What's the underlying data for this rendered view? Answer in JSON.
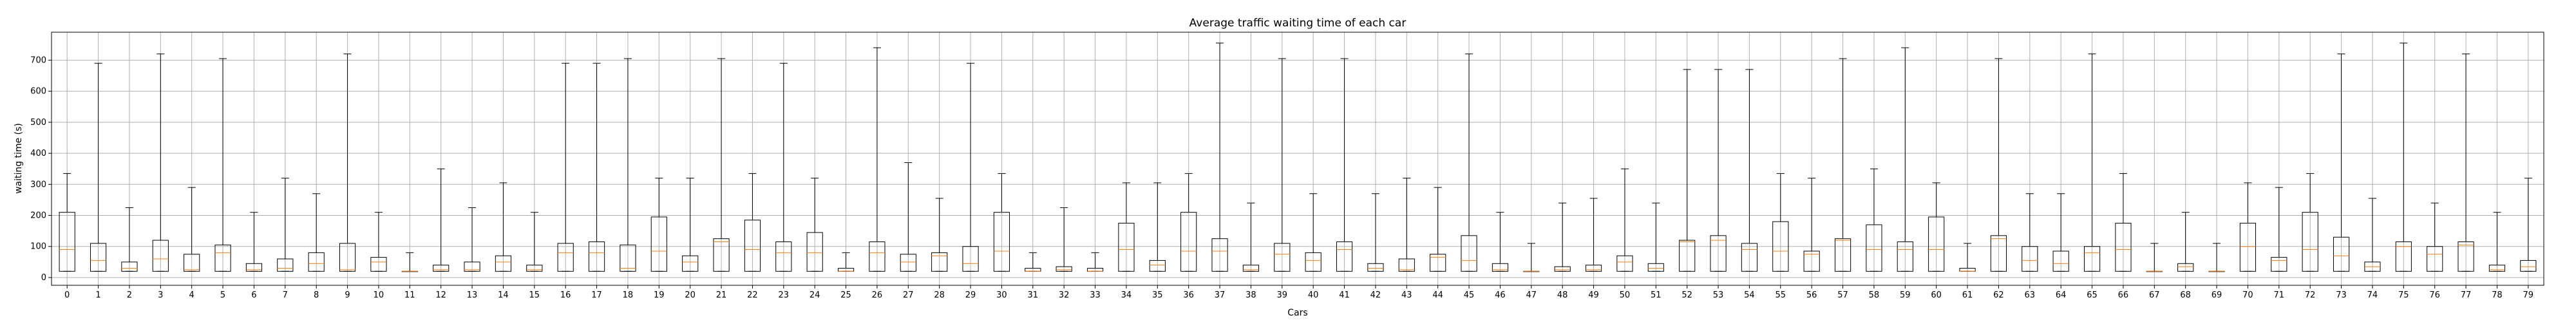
{
  "chart_data": {
    "type": "boxplot",
    "title": "Average traffic waiting time of each car",
    "xlabel": "Cars",
    "ylabel": "waiting time (s)",
    "ylim": [
      -25,
      790
    ],
    "yticks": [
      0,
      100,
      200,
      300,
      400,
      500,
      600,
      700
    ],
    "grid": true,
    "colors": {
      "box": "#000000",
      "median": "#ff7f0e",
      "grid": "#b0b0b0"
    },
    "categories": [
      "0",
      "1",
      "2",
      "3",
      "4",
      "5",
      "6",
      "7",
      "8",
      "9",
      "10",
      "11",
      "12",
      "13",
      "14",
      "15",
      "16",
      "17",
      "18",
      "19",
      "20",
      "21",
      "22",
      "23",
      "24",
      "25",
      "26",
      "27",
      "28",
      "29",
      "30",
      "31",
      "32",
      "33",
      "34",
      "35",
      "36",
      "37",
      "38",
      "39",
      "40",
      "41",
      "42",
      "43",
      "44",
      "45",
      "46",
      "47",
      "48",
      "49",
      "50",
      "51",
      "52",
      "53",
      "54",
      "55",
      "56",
      "57",
      "58",
      "59",
      "60",
      "61",
      "62",
      "63",
      "64",
      "65",
      "66",
      "67",
      "68",
      "69",
      "70",
      "71",
      "72",
      "73",
      "74",
      "75",
      "76",
      "77",
      "78",
      "79"
    ],
    "boxes": [
      {
        "min": 20,
        "q1": 20,
        "median": 90,
        "q3": 210,
        "max": 335
      },
      {
        "min": 20,
        "q1": 20,
        "median": 55,
        "q3": 110,
        "max": 690
      },
      {
        "min": 20,
        "q1": 20,
        "median": 30,
        "q3": 50,
        "max": 225
      },
      {
        "min": 20,
        "q1": 20,
        "median": 60,
        "q3": 120,
        "max": 720
      },
      {
        "min": 20,
        "q1": 20,
        "median": 25,
        "q3": 75,
        "max": 290
      },
      {
        "min": 20,
        "q1": 20,
        "median": 80,
        "q3": 105,
        "max": 705
      },
      {
        "min": 20,
        "q1": 20,
        "median": 25,
        "q3": 45,
        "max": 210
      },
      {
        "min": 20,
        "q1": 20,
        "median": 30,
        "q3": 60,
        "max": 320
      },
      {
        "min": 20,
        "q1": 20,
        "median": 45,
        "q3": 80,
        "max": 270
      },
      {
        "min": 20,
        "q1": 20,
        "median": 25,
        "q3": 110,
        "max": 720
      },
      {
        "min": 20,
        "q1": 20,
        "median": 50,
        "q3": 65,
        "max": 210
      },
      {
        "min": 20,
        "q1": 20,
        "median": 20,
        "q3": 20,
        "max": 80
      },
      {
        "min": 20,
        "q1": 20,
        "median": 25,
        "q3": 40,
        "max": 350
      },
      {
        "min": 20,
        "q1": 20,
        "median": 25,
        "q3": 50,
        "max": 225
      },
      {
        "min": 20,
        "q1": 20,
        "median": 50,
        "q3": 70,
        "max": 305
      },
      {
        "min": 20,
        "q1": 20,
        "median": 25,
        "q3": 40,
        "max": 210
      },
      {
        "min": 20,
        "q1": 20,
        "median": 80,
        "q3": 110,
        "max": 690
      },
      {
        "min": 20,
        "q1": 20,
        "median": 80,
        "q3": 115,
        "max": 690
      },
      {
        "min": 20,
        "q1": 20,
        "median": 30,
        "q3": 105,
        "max": 705
      },
      {
        "min": 20,
        "q1": 20,
        "median": 85,
        "q3": 195,
        "max": 320
      },
      {
        "min": 20,
        "q1": 20,
        "median": 50,
        "q3": 70,
        "max": 320
      },
      {
        "min": 20,
        "q1": 20,
        "median": 115,
        "q3": 125,
        "max": 705
      },
      {
        "min": 20,
        "q1": 20,
        "median": 90,
        "q3": 185,
        "max": 335
      },
      {
        "min": 20,
        "q1": 20,
        "median": 80,
        "q3": 115,
        "max": 690
      },
      {
        "min": 20,
        "q1": 20,
        "median": 80,
        "q3": 145,
        "max": 320
      },
      {
        "min": 20,
        "q1": 20,
        "median": 20,
        "q3": 30,
        "max": 80
      },
      {
        "min": 20,
        "q1": 20,
        "median": 80,
        "q3": 115,
        "max": 740
      },
      {
        "min": 20,
        "q1": 20,
        "median": 50,
        "q3": 75,
        "max": 370
      },
      {
        "min": 20,
        "q1": 20,
        "median": 70,
        "q3": 80,
        "max": 255
      },
      {
        "min": 20,
        "q1": 20,
        "median": 45,
        "q3": 100,
        "max": 690
      },
      {
        "min": 20,
        "q1": 20,
        "median": 85,
        "q3": 210,
        "max": 335
      },
      {
        "min": 20,
        "q1": 20,
        "median": 20,
        "q3": 30,
        "max": 80
      },
      {
        "min": 20,
        "q1": 20,
        "median": 25,
        "q3": 35,
        "max": 225
      },
      {
        "min": 20,
        "q1": 20,
        "median": 20,
        "q3": 30,
        "max": 80
      },
      {
        "min": 20,
        "q1": 20,
        "median": 90,
        "q3": 175,
        "max": 305
      },
      {
        "min": 20,
        "q1": 20,
        "median": 40,
        "q3": 55,
        "max": 305
      },
      {
        "min": 20,
        "q1": 20,
        "median": 85,
        "q3": 210,
        "max": 335
      },
      {
        "min": 20,
        "q1": 20,
        "median": 85,
        "q3": 125,
        "max": 755
      },
      {
        "min": 20,
        "q1": 20,
        "median": 25,
        "q3": 40,
        "max": 240
      },
      {
        "min": 20,
        "q1": 20,
        "median": 75,
        "q3": 110,
        "max": 705
      },
      {
        "min": 20,
        "q1": 20,
        "median": 55,
        "q3": 80,
        "max": 270
      },
      {
        "min": 20,
        "q1": 20,
        "median": 90,
        "q3": 115,
        "max": 705
      },
      {
        "min": 20,
        "q1": 20,
        "median": 30,
        "q3": 45,
        "max": 270
      },
      {
        "min": 20,
        "q1": 20,
        "median": 25,
        "q3": 60,
        "max": 320
      },
      {
        "min": 20,
        "q1": 20,
        "median": 65,
        "q3": 75,
        "max": 290
      },
      {
        "min": 20,
        "q1": 20,
        "median": 55,
        "q3": 135,
        "max": 720
      },
      {
        "min": 20,
        "q1": 20,
        "median": 25,
        "q3": 45,
        "max": 210
      },
      {
        "min": 20,
        "q1": 20,
        "median": 20,
        "q3": 20,
        "max": 110
      },
      {
        "min": 20,
        "q1": 20,
        "median": 25,
        "q3": 35,
        "max": 240
      },
      {
        "min": 20,
        "q1": 20,
        "median": 25,
        "q3": 40,
        "max": 255
      },
      {
        "min": 20,
        "q1": 20,
        "median": 50,
        "q3": 70,
        "max": 350
      },
      {
        "min": 20,
        "q1": 20,
        "median": 30,
        "q3": 45,
        "max": 240
      },
      {
        "min": 20,
        "q1": 20,
        "median": 115,
        "q3": 120,
        "max": 670
      },
      {
        "min": 20,
        "q1": 20,
        "median": 120,
        "q3": 135,
        "max": 670
      },
      {
        "min": 20,
        "q1": 20,
        "median": 90,
        "q3": 110,
        "max": 670
      },
      {
        "min": 20,
        "q1": 20,
        "median": 85,
        "q3": 180,
        "max": 335
      },
      {
        "min": 20,
        "q1": 20,
        "median": 75,
        "q3": 85,
        "max": 320
      },
      {
        "min": 20,
        "q1": 20,
        "median": 120,
        "q3": 125,
        "max": 705
      },
      {
        "min": 20,
        "q1": 20,
        "median": 90,
        "q3": 170,
        "max": 350
      },
      {
        "min": 20,
        "q1": 20,
        "median": 90,
        "q3": 115,
        "max": 740
      },
      {
        "min": 20,
        "q1": 20,
        "median": 90,
        "q3": 195,
        "max": 305
      },
      {
        "min": 20,
        "q1": 20,
        "median": 20,
        "q3": 30,
        "max": 110
      },
      {
        "min": 20,
        "q1": 20,
        "median": 125,
        "q3": 135,
        "max": 705
      },
      {
        "min": 20,
        "q1": 20,
        "median": 55,
        "q3": 100,
        "max": 270
      },
      {
        "min": 20,
        "q1": 20,
        "median": 45,
        "q3": 85,
        "max": 270
      },
      {
        "min": 20,
        "q1": 20,
        "median": 80,
        "q3": 100,
        "max": 720
      },
      {
        "min": 20,
        "q1": 20,
        "median": 90,
        "q3": 175,
        "max": 335
      },
      {
        "min": 20,
        "q1": 20,
        "median": 20,
        "q3": 20,
        "max": 110
      },
      {
        "min": 20,
        "q1": 20,
        "median": 35,
        "q3": 45,
        "max": 210
      },
      {
        "min": 20,
        "q1": 20,
        "median": 20,
        "q3": 20,
        "max": 110
      },
      {
        "min": 20,
        "q1": 20,
        "median": 100,
        "q3": 175,
        "max": 305
      },
      {
        "min": 20,
        "q1": 20,
        "median": 55,
        "q3": 65,
        "max": 290
      },
      {
        "min": 20,
        "q1": 20,
        "median": 90,
        "q3": 210,
        "max": 335
      },
      {
        "min": 20,
        "q1": 20,
        "median": 70,
        "q3": 130,
        "max": 720
      },
      {
        "min": 20,
        "q1": 20,
        "median": 35,
        "q3": 50,
        "max": 255
      },
      {
        "min": 20,
        "q1": 20,
        "median": 100,
        "q3": 115,
        "max": 755
      },
      {
        "min": 20,
        "q1": 20,
        "median": 75,
        "q3": 100,
        "max": 240
      },
      {
        "min": 20,
        "q1": 20,
        "median": 105,
        "q3": 115,
        "max": 720
      },
      {
        "min": 20,
        "q1": 20,
        "median": 25,
        "q3": 40,
        "max": 210
      },
      {
        "min": 20,
        "q1": 20,
        "median": 35,
        "q3": 55,
        "max": 320
      }
    ]
  }
}
